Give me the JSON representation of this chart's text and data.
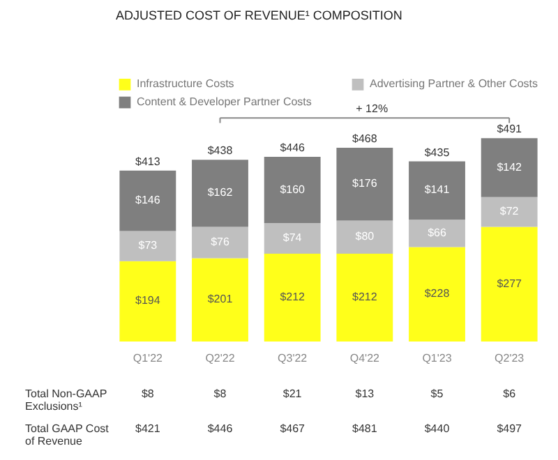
{
  "chart_data": {
    "type": "bar",
    "title": "ADJUSTED COST OF REVENUE¹ COMPOSITION",
    "categories": [
      "Q1'22",
      "Q2'22",
      "Q3'22",
      "Q4'22",
      "Q1'23",
      "Q2'23"
    ],
    "stacked": true,
    "legend": "top left",
    "series": [
      {
        "name": "Infrastructure Costs",
        "color": "#ffff1a",
        "values": [
          194,
          201,
          212,
          212,
          228,
          277
        ],
        "value_labels": [
          "$194",
          "$201",
          "$212",
          "$212",
          "$228",
          "$277"
        ]
      },
      {
        "name": "Advertising Partner & Other Costs",
        "color": "#bfbfbf",
        "values": [
          73,
          76,
          74,
          80,
          66,
          72
        ],
        "value_labels": [
          "$73",
          "$76",
          "$74",
          "$80",
          "$66",
          "$72"
        ]
      },
      {
        "name": "Content & Developer Partner Costs",
        "color": "#7f7f7f",
        "values": [
          146,
          162,
          160,
          176,
          141,
          142
        ],
        "value_labels": [
          "$146",
          "$162",
          "$160",
          "$176",
          "$141",
          "$142"
        ]
      }
    ],
    "totals": [
      "$413",
      "$438",
      "$446",
      "$468",
      "$435",
      "$491"
    ],
    "annotations": [
      "+ 12%",
      "Total Non-GAAP Exclusions¹",
      "$8",
      "$8",
      "$21",
      "$13",
      "$5",
      "$6",
      "Total GAAP Cost of Revenue",
      "$421",
      "$446",
      "$467",
      "$481",
      "$440",
      "$497"
    ]
  }
}
